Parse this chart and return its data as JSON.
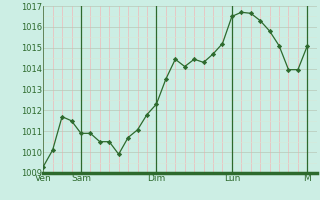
{
  "bg_color": "#cceee4",
  "line_color": "#2d6a2d",
  "marker_color": "#2d6a2d",
  "ylim": [
    1009,
    1017
  ],
  "yticks": [
    1009,
    1010,
    1011,
    1012,
    1013,
    1014,
    1015,
    1016,
    1017
  ],
  "day_labels": [
    "Ven",
    "Sam",
    "Dim",
    "Lun",
    "M"
  ],
  "day_positions": [
    0,
    24,
    72,
    120,
    168
  ],
  "xlim_max": 174,
  "x": [
    0,
    6,
    12,
    18,
    24,
    30,
    36,
    42,
    48,
    54,
    60,
    66,
    72,
    78,
    84,
    90,
    96,
    102,
    108,
    114,
    120,
    126,
    132,
    138,
    144,
    150,
    156,
    162,
    168
  ],
  "y": [
    1009.3,
    1010.1,
    1011.7,
    1011.5,
    1010.9,
    1010.9,
    1010.5,
    1010.5,
    1009.9,
    1010.7,
    1011.07,
    1011.8,
    1012.3,
    1013.5,
    1014.45,
    1014.1,
    1014.45,
    1014.3,
    1014.7,
    1015.2,
    1016.5,
    1016.7,
    1016.65,
    1016.3,
    1015.8,
    1015.1,
    1013.95,
    1013.95,
    1015.1
  ],
  "axis_color": "#2d6a2d",
  "border_color": "#2d6a2d",
  "minor_vgrid_color": "#f0b8b8",
  "major_hgrid_color": "#b8c8b8",
  "minor_hgrid_color": "#d8e8d8",
  "day_line_color": "#2d6a2d",
  "bottom_bar_color": "#2d6a2d",
  "ytick_fontsize": 6,
  "xtick_fontsize": 6.5
}
